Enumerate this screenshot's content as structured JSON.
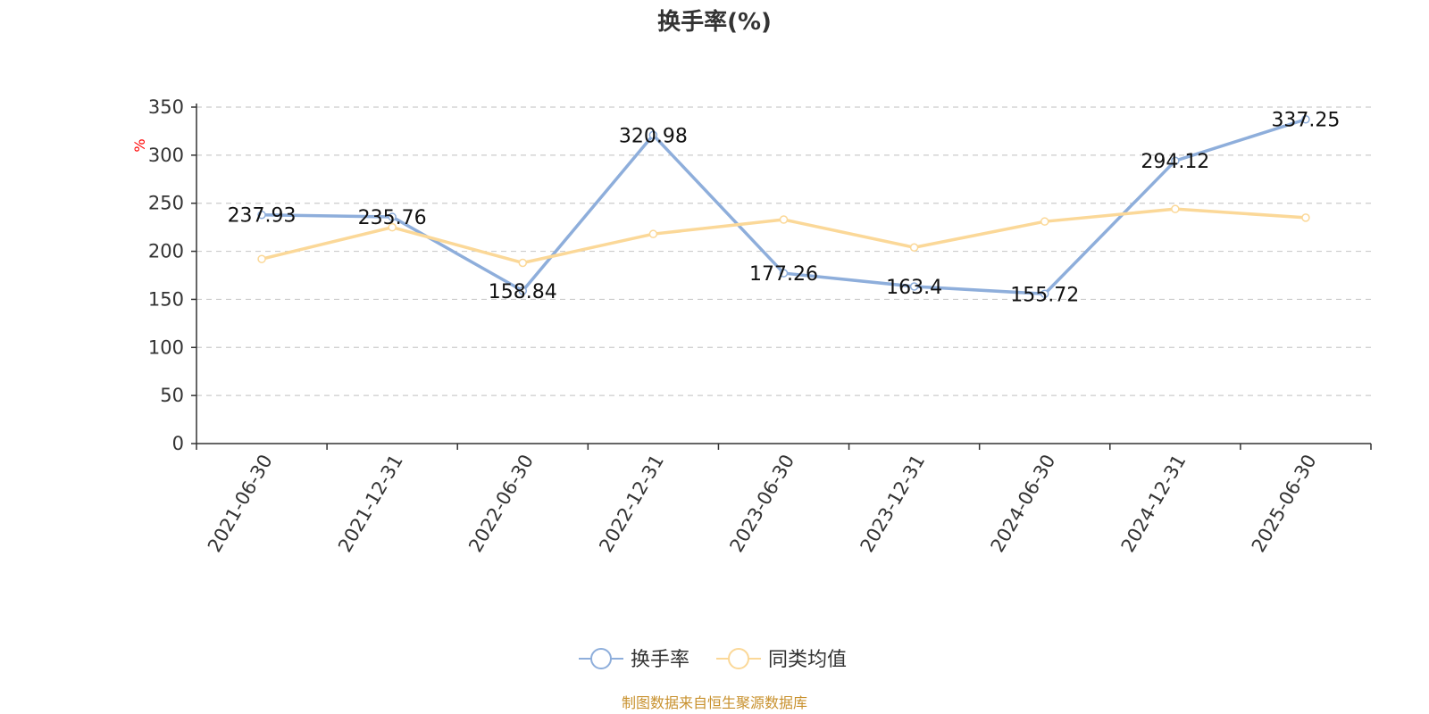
{
  "chart_data": {
    "type": "line",
    "title": "换手率(%)",
    "ylabel": "%",
    "ylim": [
      0,
      350
    ],
    "yticks": [
      0,
      50,
      100,
      150,
      200,
      250,
      300,
      350
    ],
    "grid": true,
    "legend_position": "bottom",
    "categories": [
      "2021-06-30",
      "2021-12-31",
      "2022-06-30",
      "2022-12-31",
      "2023-06-30",
      "2023-12-31",
      "2024-06-30",
      "2024-12-31",
      "2025-06-30"
    ],
    "series": [
      {
        "name": "换手率",
        "color": "#8eaedb",
        "values": [
          237.93,
          235.76,
          158.84,
          320.98,
          177.26,
          163.4,
          155.72,
          294.12,
          337.25
        ],
        "labels": [
          "237.93",
          "235.76",
          "158.84",
          "320.98",
          "177.26",
          "163.4",
          "155.72",
          "294.12",
          "337.25"
        ]
      },
      {
        "name": "同类均值",
        "color": "#fbd898",
        "values": [
          192,
          225,
          188,
          218,
          233,
          204,
          231,
          244,
          235
        ]
      }
    ],
    "source": "制图数据来自恒生聚源数据库"
  }
}
